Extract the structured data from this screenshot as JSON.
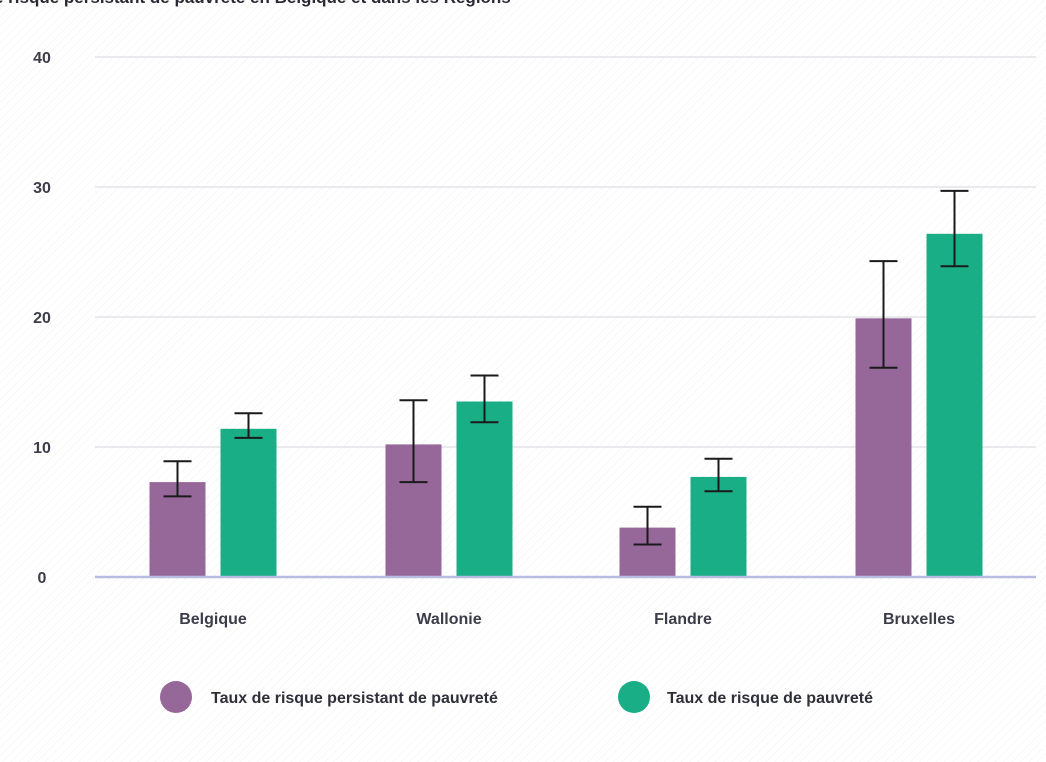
{
  "title": "e risque persistant de pauvreté en Belgique et dans les Régions",
  "colors": {
    "persistent": "#96689a",
    "poverty": "#1aae86",
    "grid": "#e3e3e8",
    "axis": "#b7bde0",
    "error": "#1a1a1a"
  },
  "chart_data": {
    "type": "bar",
    "title": "e risque persistant de pauvreté en Belgique et dans les Régions",
    "categories": [
      "Belgique",
      "Wallonie",
      "Flandre",
      "Bruxelles"
    ],
    "series": [
      {
        "name": "Taux de risque persistant de pauvreté",
        "color": "#96689a",
        "values": [
          7.3,
          10.2,
          3.8,
          19.9
        ],
        "error_low": [
          6.2,
          7.3,
          2.5,
          16.1
        ],
        "error_high": [
          8.9,
          13.6,
          5.4,
          24.3
        ]
      },
      {
        "name": "Taux de risque de pauvreté",
        "color": "#1aae86",
        "values": [
          11.4,
          13.5,
          7.7,
          26.4
        ],
        "error_low": [
          10.7,
          11.9,
          6.6,
          23.9
        ],
        "error_high": [
          12.6,
          15.5,
          9.1,
          29.7
        ]
      }
    ],
    "yticks": [
      0,
      10,
      20,
      30,
      40
    ],
    "ylim": [
      0,
      40
    ],
    "xlabel": "",
    "ylabel": "",
    "grid": true,
    "legend_position": "bottom"
  }
}
